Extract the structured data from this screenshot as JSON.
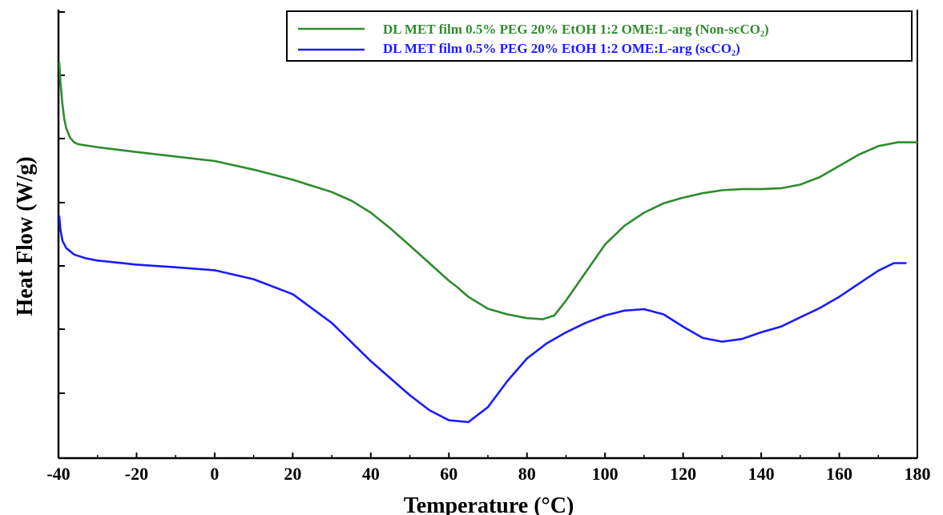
{
  "chart_data": {
    "type": "line",
    "title": "",
    "xlabel": "Temperature (°C)",
    "ylabel": "Heat Flow (W/g)",
    "xlim": [
      -40,
      180
    ],
    "x_ticks": [
      -40,
      -20,
      0,
      20,
      40,
      60,
      80,
      100,
      120,
      140,
      160,
      180
    ],
    "ylim": [
      0,
      100
    ],
    "y_tick_labels_shown": false,
    "grid": false,
    "legend_position": "top-right",
    "series": [
      {
        "name": "DL MET film 0.5% PEG 20% EtOH 1:2 OME:L-arg (Non-scCO₂)",
        "color": "#2e8b2e",
        "points": [
          [
            -39.8,
            96
          ],
          [
            -39.5,
            91
          ],
          [
            -39,
            85
          ],
          [
            -38.5,
            81
          ],
          [
            -38,
            78.5
          ],
          [
            -37,
            76
          ],
          [
            -36,
            74.8
          ],
          [
            -35,
            74.3
          ],
          [
            -30,
            73.5
          ],
          [
            -20,
            72.2
          ],
          [
            -10,
            71
          ],
          [
            0,
            69.8
          ],
          [
            10,
            67.5
          ],
          [
            20,
            64.8
          ],
          [
            30,
            61.5
          ],
          [
            35,
            59.2
          ],
          [
            40,
            56
          ],
          [
            45,
            51.8
          ],
          [
            50,
            47.2
          ],
          [
            55,
            42.5
          ],
          [
            60,
            37.8
          ],
          [
            62,
            36.2
          ],
          [
            65,
            33.5
          ],
          [
            70,
            30.3
          ],
          [
            75,
            28.8
          ],
          [
            80,
            27.8
          ],
          [
            84,
            27.5
          ],
          [
            87,
            28.5
          ],
          [
            90,
            32.5
          ],
          [
            95,
            40
          ],
          [
            100,
            47.5
          ],
          [
            105,
            52.5
          ],
          [
            110,
            56
          ],
          [
            115,
            58.5
          ],
          [
            120,
            60
          ],
          [
            125,
            61.2
          ],
          [
            130,
            62
          ],
          [
            135,
            62.3
          ],
          [
            140,
            62.3
          ],
          [
            145,
            62.5
          ],
          [
            150,
            63.5
          ],
          [
            155,
            65.5
          ],
          [
            160,
            68.5
          ],
          [
            165,
            71.5
          ],
          [
            170,
            73.8
          ],
          [
            175,
            74.8
          ],
          [
            180,
            74.8
          ]
        ]
      },
      {
        "name": "DL MET film 0.5% PEG 20% EtOH 1:2 OME:L-arg (scCO₂)",
        "color": "#1a1aff",
        "points": [
          [
            -39.8,
            55
          ],
          [
            -39.5,
            51.5
          ],
          [
            -39,
            48.5
          ],
          [
            -38,
            46.5
          ],
          [
            -36,
            44.8
          ],
          [
            -33,
            43.8
          ],
          [
            -30,
            43.2
          ],
          [
            -20,
            42.1
          ],
          [
            -10,
            41.4
          ],
          [
            0,
            40.6
          ],
          [
            10,
            38.2
          ],
          [
            20,
            34.2
          ],
          [
            30,
            26.5
          ],
          [
            40,
            16.3
          ],
          [
            50,
            7.2
          ],
          [
            55,
            3.2
          ],
          [
            60,
            0.5
          ],
          [
            65,
            0
          ],
          [
            70,
            4
          ],
          [
            75,
            11
          ],
          [
            80,
            17
          ],
          [
            85,
            21
          ],
          [
            90,
            24
          ],
          [
            95,
            26.5
          ],
          [
            100,
            28.5
          ],
          [
            105,
            29.8
          ],
          [
            110,
            30.2
          ],
          [
            115,
            28.8
          ],
          [
            120,
            25.5
          ],
          [
            125,
            22.5
          ],
          [
            130,
            21.5
          ],
          [
            135,
            22.2
          ],
          [
            140,
            24
          ],
          [
            145,
            25.5
          ],
          [
            150,
            28
          ],
          [
            155,
            30.5
          ],
          [
            160,
            33.5
          ],
          [
            165,
            37
          ],
          [
            170,
            40.5
          ],
          [
            174,
            42.5
          ],
          [
            177,
            42.5
          ]
        ]
      }
    ]
  }
}
